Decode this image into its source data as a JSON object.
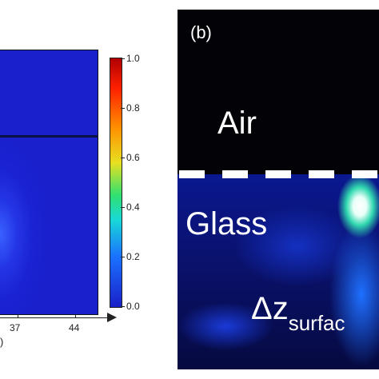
{
  "panel_a": {
    "x_ticks": [
      "37",
      "44"
    ],
    "x_partial": ")",
    "colorbar": {
      "ticks": [
        "1.0",
        "0.8",
        "0.6",
        "0.4",
        "0.2",
        "0.0"
      ],
      "colors": [
        "#b00000",
        "#ff2000",
        "#ff9000",
        "#e8e020",
        "#30e070",
        "#18d8d8",
        "#1a70ff",
        "#1a20c8"
      ]
    }
  },
  "panel_b": {
    "label": "(b)",
    "air": "Air",
    "glass": "Glass",
    "delta_z": "Δz",
    "delta_z_sub": "surfac"
  }
}
